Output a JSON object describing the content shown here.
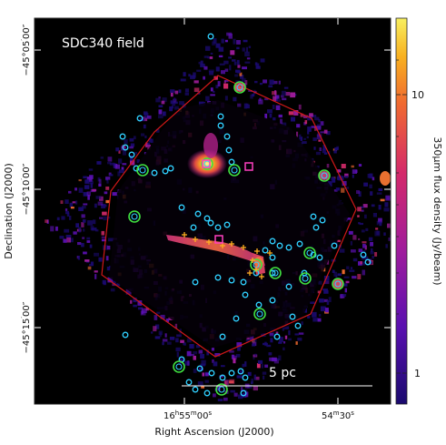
{
  "title": "SDC340 field",
  "scale_bar": {
    "label": "5 pc"
  },
  "axes": {
    "xlabel": "Right Ascension (J2000)",
    "ylabel": "Declination (J2000)",
    "x_ticks": [
      {
        "main": "16",
        "h": "h",
        "min": "55",
        "m": "m",
        "sec": "00",
        "s": "s"
      },
      {
        "main": "",
        "h": "",
        "min": "54",
        "m": "m",
        "sec": "30",
        "s": "s"
      }
    ],
    "y_ticks": [
      {
        "deg": "−45°",
        "min": "05",
        "sec": "00″"
      },
      {
        "deg": "−45°",
        "min": "10",
        "sec": "00″"
      },
      {
        "deg": "−45°",
        "min": "15",
        "sec": "00″"
      }
    ]
  },
  "colorbar": {
    "label": "350μm flux density (Jy/beam)",
    "ticks": [
      "10",
      "1"
    ],
    "scale": "log",
    "colors": [
      "#1a0a6e",
      "#5a10b0",
      "#a01c9c",
      "#d42a6a",
      "#f06a30",
      "#f8b020",
      "#f8f060"
    ]
  },
  "colors": {
    "background": "#000000",
    "boundary": "#d01818",
    "cyan_circle": "#30d0ff",
    "green_circle": "#40e040",
    "plus_marker": "#ffb020",
    "square_marker": "#ff40c0"
  }
}
